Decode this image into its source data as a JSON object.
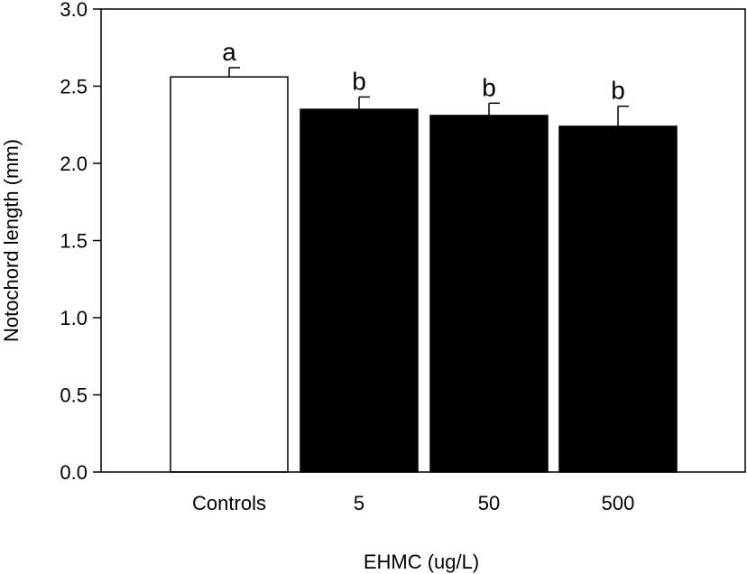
{
  "chart_data": {
    "type": "bar",
    "title": "",
    "xlabel": "EHMC (ug/L)",
    "ylabel": "Notochord length (mm)",
    "categories": [
      "Controls",
      "5",
      "50",
      "500"
    ],
    "values": [
      2.56,
      2.35,
      2.31,
      2.24
    ],
    "errors": [
      0.06,
      0.08,
      0.08,
      0.13
    ],
    "significance_labels": [
      "a",
      "b",
      "b",
      "b"
    ],
    "bar_fills": [
      "#ffffff",
      "#000000",
      "#000000",
      "#000000"
    ],
    "ylim": [
      0,
      3.0
    ],
    "yticks": [
      0.0,
      0.5,
      1.0,
      1.5,
      2.0,
      2.5,
      3.0
    ],
    "ytick_labels": [
      "0.0",
      "0.5",
      "1.0",
      "1.5",
      "2.0",
      "2.5",
      "3.0"
    ],
    "grid": false,
    "legend": "none"
  }
}
